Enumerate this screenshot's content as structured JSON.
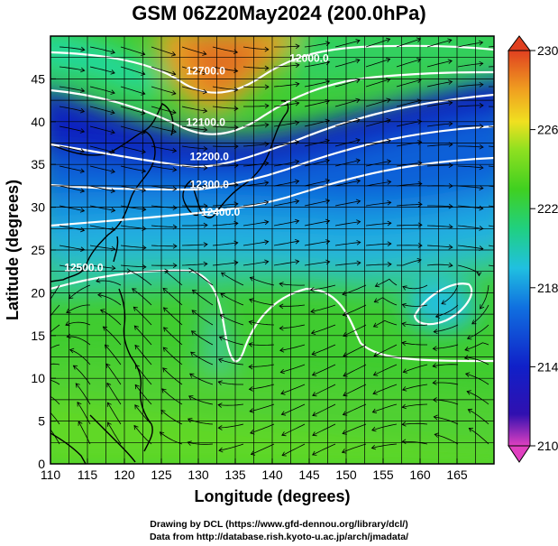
{
  "title": "GSM 06Z20May2024 (200.0hPa)",
  "xlabel": "Longitude (degrees)",
  "ylabel": "Latitude  (degrees)",
  "credits": {
    "line1": "Drawing by DCL (https://www.gfd-dennou.org/library/dcl/)",
    "line2": "Data from http://database.rish.kyoto-u.ac.jp/arch/jmadata/"
  },
  "map_data": {
    "type": "heatmap",
    "variable": "temperature",
    "lon_range": [
      110,
      170
    ],
    "lat_range": [
      0,
      50
    ],
    "x_ticks": [
      110,
      115,
      120,
      125,
      130,
      135,
      140,
      145,
      150,
      155,
      160,
      165
    ],
    "y_ticks": [
      0,
      5,
      10,
      15,
      20,
      25,
      30,
      35,
      40,
      45
    ],
    "colorbar": {
      "min": 210,
      "max": 230,
      "ticks": [
        210,
        214,
        218,
        222,
        226,
        230
      ],
      "colors": [
        "#e040c0",
        "#1010b0",
        "#1070e0",
        "#20c0e0",
        "#20d080",
        "#40d020",
        "#90e020",
        "#f0e020",
        "#f0a020",
        "#e04020"
      ]
    },
    "contour_labels": [
      {
        "text": "12000.0",
        "lon": 145.0,
        "lat": 47.0
      },
      {
        "text": "12100.0",
        "lon": 131.0,
        "lat": 39.5
      },
      {
        "text": "12200.0",
        "lon": 131.5,
        "lat": 35.5
      },
      {
        "text": "12300.0",
        "lon": 131.5,
        "lat": 32.2
      },
      {
        "text": "12400.0",
        "lon": 133.0,
        "lat": 29.0
      },
      {
        "text": "12500.0",
        "lon": 114.5,
        "lat": 22.5
      },
      {
        "text": "12700.0",
        "lon": 131.0,
        "lat": 45.5
      }
    ]
  }
}
